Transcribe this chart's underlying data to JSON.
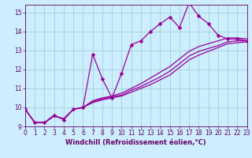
{
  "x": [
    0,
    1,
    2,
    3,
    4,
    5,
    6,
    7,
    8,
    9,
    10,
    11,
    12,
    13,
    14,
    15,
    16,
    17,
    18,
    19,
    20,
    21,
    22,
    23
  ],
  "main_line": [
    9.9,
    9.2,
    9.2,
    9.6,
    9.35,
    9.9,
    10.0,
    12.8,
    11.5,
    10.5,
    11.8,
    13.3,
    13.5,
    14.0,
    14.4,
    14.75,
    14.2,
    15.5,
    14.8,
    14.4,
    13.8,
    13.6,
    13.6,
    13.5
  ],
  "line_upper": [
    9.9,
    9.2,
    9.2,
    9.55,
    9.4,
    9.9,
    10.0,
    10.35,
    10.5,
    10.6,
    10.75,
    11.0,
    11.25,
    11.55,
    11.85,
    12.15,
    12.55,
    12.95,
    13.2,
    13.35,
    13.5,
    13.65,
    13.65,
    13.6
  ],
  "line_mid": [
    9.9,
    9.2,
    9.2,
    9.55,
    9.4,
    9.9,
    10.0,
    10.3,
    10.45,
    10.55,
    10.65,
    10.9,
    11.1,
    11.35,
    11.6,
    11.9,
    12.3,
    12.7,
    12.95,
    13.1,
    13.25,
    13.45,
    13.5,
    13.5
  ],
  "line_lower": [
    9.9,
    9.2,
    9.2,
    9.55,
    9.4,
    9.9,
    10.0,
    10.25,
    10.4,
    10.5,
    10.6,
    10.8,
    11.0,
    11.2,
    11.45,
    11.7,
    12.1,
    12.5,
    12.75,
    12.95,
    13.15,
    13.35,
    13.4,
    13.45
  ],
  "bg_color": "#cceeff",
  "grid_color": "#99cccc",
  "line_color": "#990099",
  "marker": "D",
  "marker_size": 2.5,
  "xlim": [
    0,
    23
  ],
  "ylim": [
    9.0,
    15.4
  ],
  "yticks": [
    9,
    10,
    11,
    12,
    13,
    14,
    15
  ],
  "xticks": [
    0,
    1,
    2,
    3,
    4,
    5,
    6,
    7,
    8,
    9,
    10,
    11,
    12,
    13,
    14,
    15,
    16,
    17,
    18,
    19,
    20,
    21,
    22,
    23
  ],
  "xlabel": "Windchill (Refroidissement éolien,°C)",
  "font_color": "#660066",
  "label_font_size": 6.0,
  "tick_font_size": 5.5,
  "lw": 0.9
}
